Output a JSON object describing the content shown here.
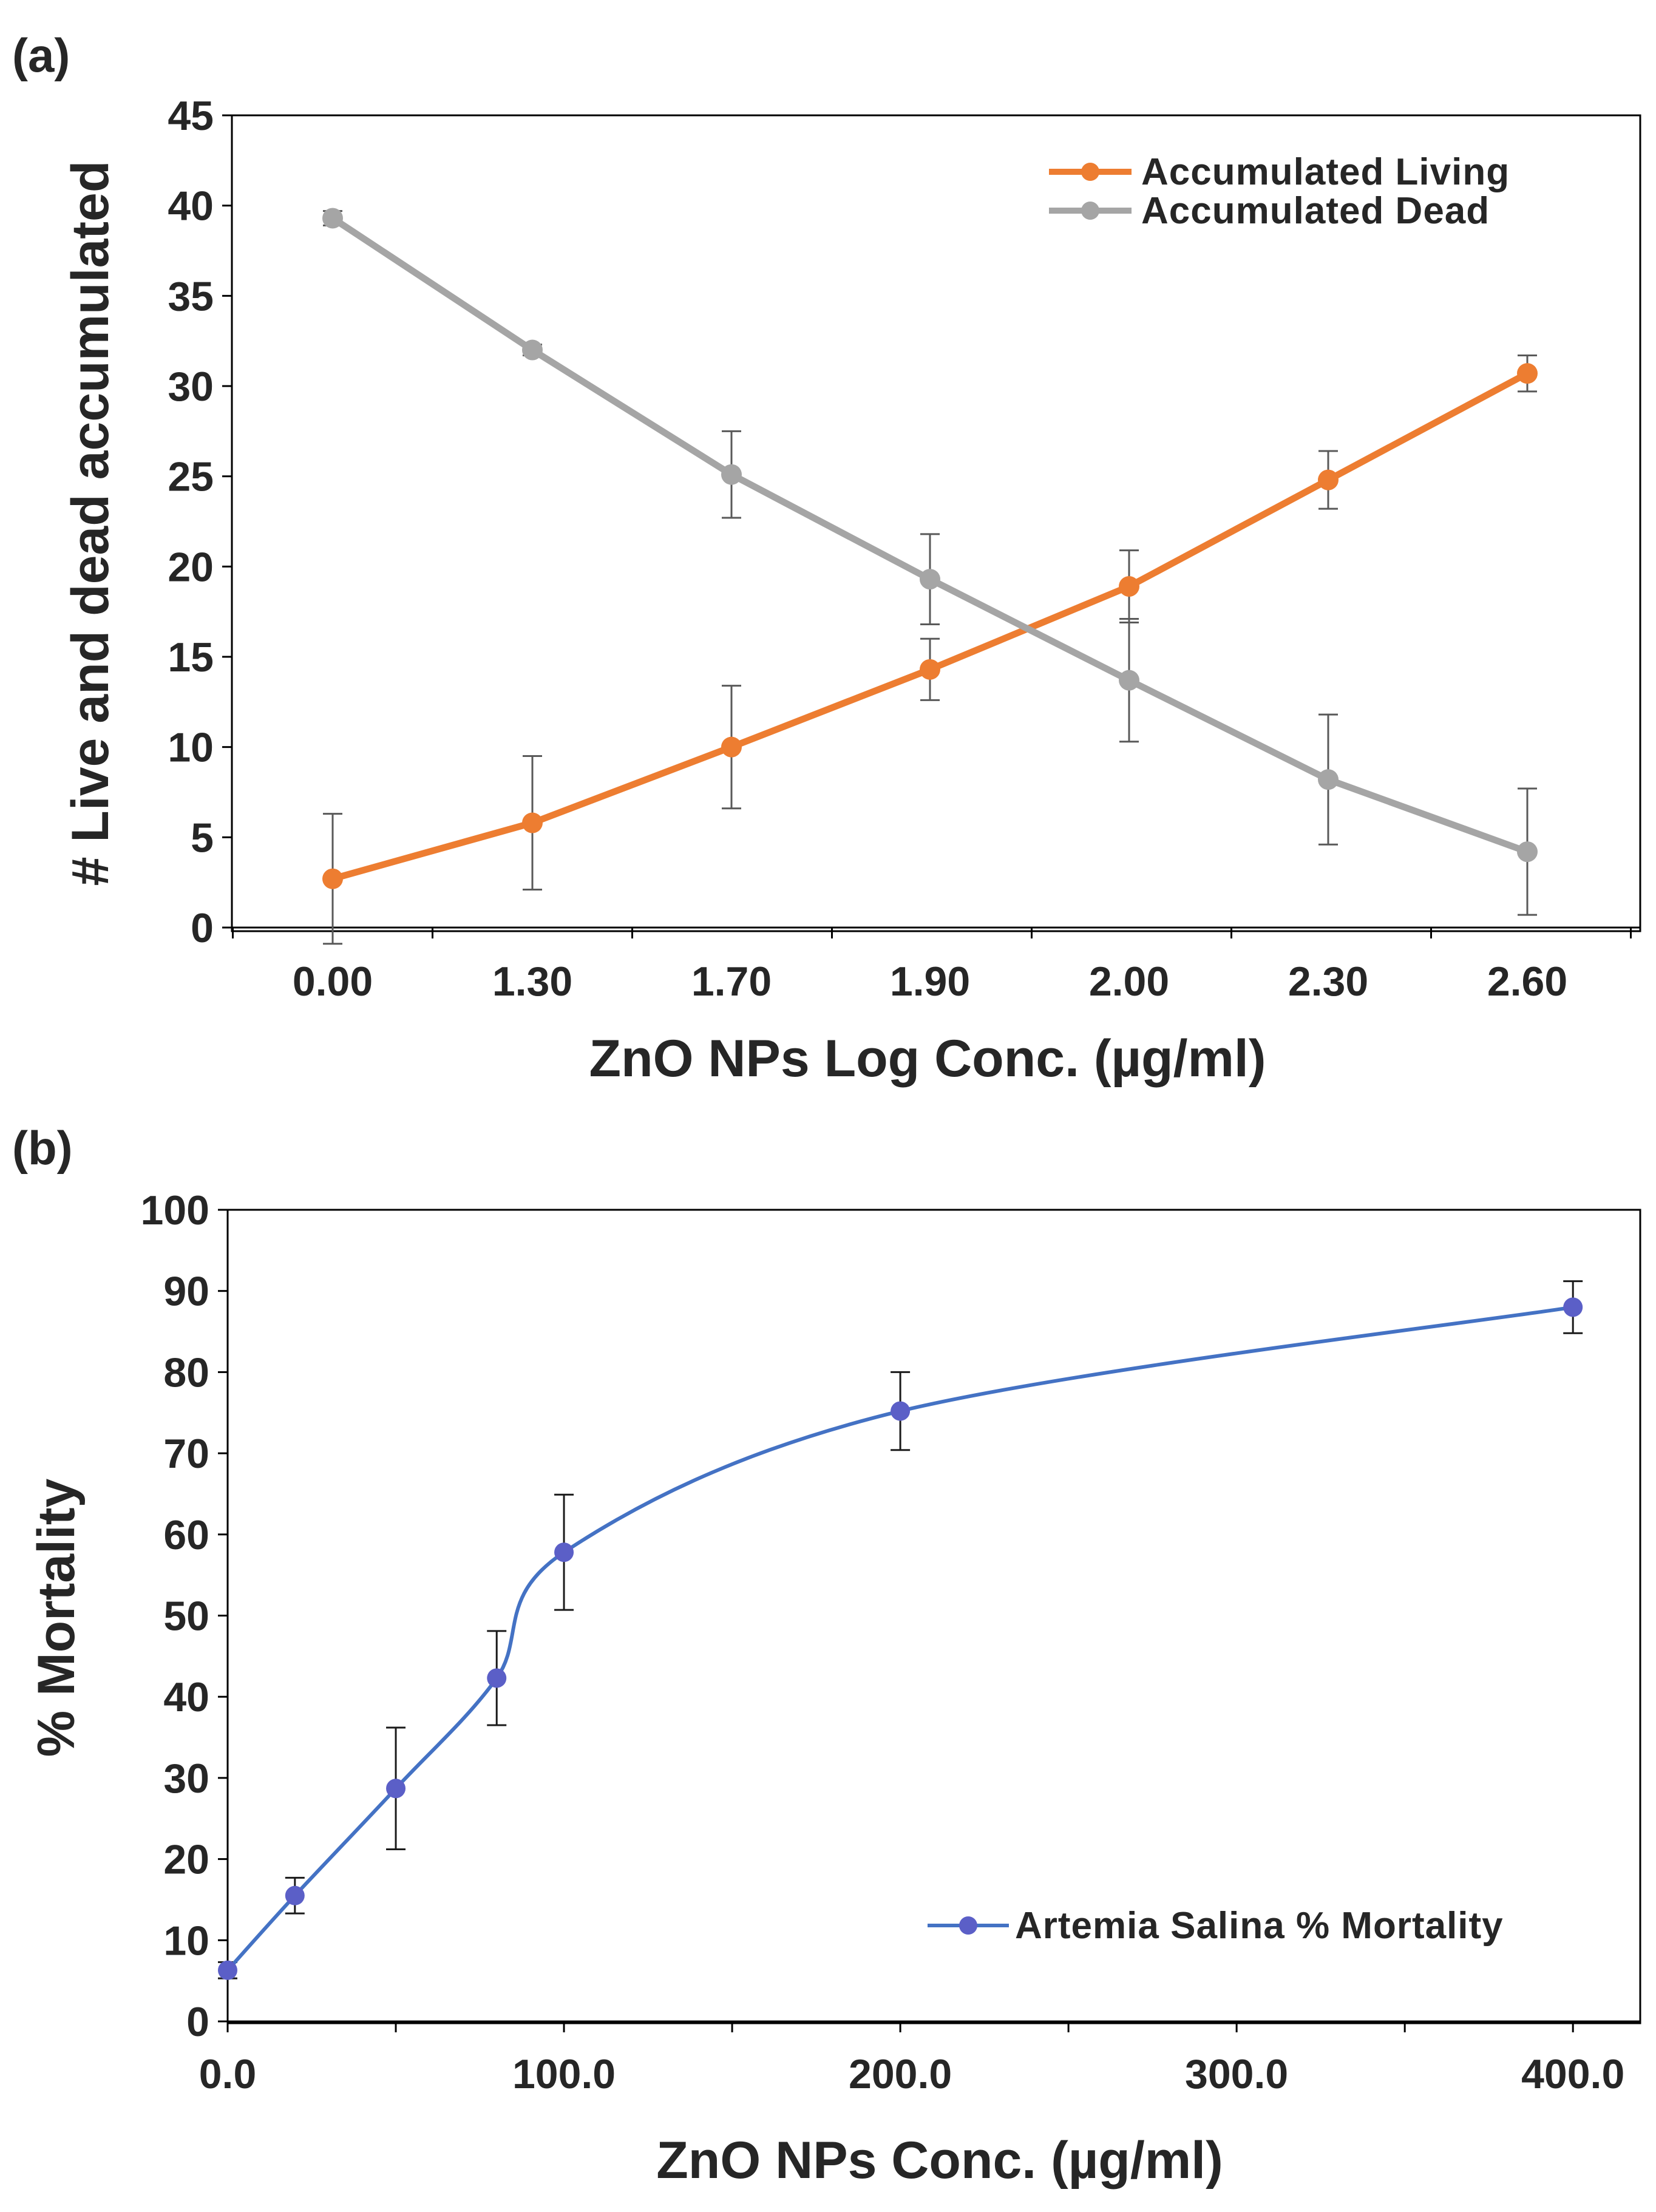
{
  "figure": {
    "panel_a_label": "(a)",
    "panel_b_label": "(b)"
  },
  "chart_data": [
    {
      "type": "line",
      "panel": "(a)",
      "categories": [
        "0.00",
        "1.30",
        "1.70",
        "1.90",
        "2.00",
        "2.30",
        "2.60"
      ],
      "series": [
        {
          "name": "Accumulated Living",
          "color": "#ED7D31",
          "values": [
            2.7,
            5.8,
            10.0,
            14.3,
            18.9,
            24.8,
            30.7
          ],
          "errors": [
            3.6,
            3.7,
            3.4,
            1.7,
            2.0,
            1.6,
            1.0
          ]
        },
        {
          "name": "Accumulated Dead",
          "color": "#A5A5A5",
          "values": [
            39.3,
            32.0,
            25.1,
            19.3,
            13.7,
            8.2,
            4.2
          ],
          "errors": [
            0.4,
            0.3,
            2.4,
            2.5,
            3.4,
            3.6,
            3.5
          ]
        }
      ],
      "xlabel": "ZnO NPs Log Conc. (µg/ml)",
      "ylabel": "# Live and dead  accumulated",
      "ylim": [
        0,
        45
      ],
      "yticks": [
        "0",
        "5",
        "10",
        "15",
        "20",
        "25",
        "30",
        "35",
        "40",
        "45"
      ],
      "grid": false,
      "legend": "top-right"
    },
    {
      "type": "line",
      "panel": "(b)",
      "series": [
        {
          "name": "Artemia Salina %  Mortality",
          "color": "#4472C4",
          "marker_color": "#5B5FC7",
          "x": [
            0,
            20,
            50,
            80,
            100,
            200,
            400
          ],
          "values": [
            6.3,
            15.5,
            28.7,
            42.3,
            57.8,
            75.2,
            88.0
          ],
          "errors": [
            1.0,
            2.2,
            7.5,
            5.8,
            7.1,
            4.8,
            3.2
          ]
        }
      ],
      "xlabel": "ZnO NPs Conc. (µg/ml)",
      "ylabel": "% Mortality",
      "xlim": [
        0,
        420
      ],
      "xticks": [
        "0.0",
        "100.0",
        "200.0",
        "300.0",
        "400.0"
      ],
      "xtick_values": [
        0,
        100,
        200,
        300,
        400
      ],
      "ylim": [
        0,
        100
      ],
      "yticks": [
        "0",
        "10",
        "20",
        "30",
        "40",
        "50",
        "60",
        "70",
        "80",
        "90",
        "100"
      ],
      "grid": false,
      "smooth": true,
      "legend": "bottom-right"
    }
  ]
}
